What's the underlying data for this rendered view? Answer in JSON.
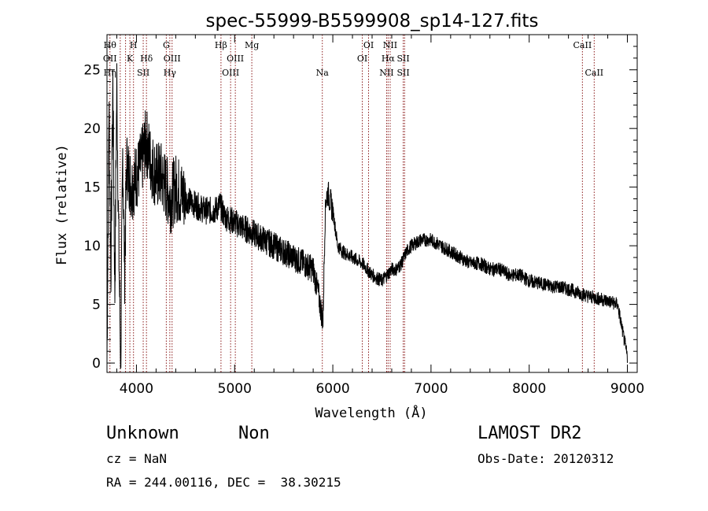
{
  "chart_data": {
    "type": "line",
    "title": "spec-55999-B5599908_sp14-127.fits",
    "xlabel": "Wavelength (Å)",
    "ylabel": "Flux (relative)",
    "xlim": [
      3700,
      9100
    ],
    "ylim": [
      -0.8,
      28.0
    ],
    "xticks": [
      4000,
      5000,
      6000,
      7000,
      8000,
      9000
    ],
    "yticks": [
      0,
      5,
      10,
      15,
      20,
      25
    ],
    "grid": false,
    "line_color": "#000000",
    "marker_color": "#8b1a1a",
    "series": [
      {
        "x": [
          3700,
          3720,
          3740,
          3760,
          3780,
          3800,
          3820,
          3840,
          3860,
          3880,
          3900,
          3950,
          4000,
          4050,
          4100,
          4150,
          4200,
          4250,
          4300,
          4350,
          4400,
          4500,
          4600,
          4700,
          4800,
          4850,
          4900,
          5000,
          5100,
          5200,
          5300,
          5400,
          5500,
          5600,
          5700,
          5800,
          5850,
          5900,
          5920,
          5930,
          5950,
          6000,
          6050,
          6100,
          6200,
          6300,
          6400,
          6500,
          6550,
          6600,
          6650,
          6700,
          6750,
          6800,
          6900,
          7000,
          7100,
          7200,
          7300,
          7400,
          7500,
          7600,
          7700,
          7800,
          7900,
          8000,
          8100,
          8200,
          8300,
          8400,
          8500,
          8600,
          8700,
          8800,
          8900,
          9000
        ],
        "y": [
          0,
          22,
          8,
          24,
          6,
          24,
          10,
          0,
          18,
          8,
          17,
          15,
          16,
          17,
          19,
          17,
          16,
          16,
          15,
          14,
          15,
          14,
          13.5,
          13,
          13,
          13.5,
          12.5,
          12,
          11.5,
          11,
          10.5,
          10,
          9.5,
          9,
          8.5,
          8,
          6,
          3.5,
          12,
          14,
          14.5,
          13,
          10,
          9.5,
          9,
          8.5,
          7.5,
          7,
          7.5,
          8,
          8,
          8.5,
          9.5,
          10,
          10.5,
          10.5,
          10,
          9.5,
          9,
          8.5,
          8.5,
          8,
          8,
          7.5,
          7.5,
          7,
          6.8,
          6.6,
          6.5,
          6.3,
          6,
          5.7,
          5.5,
          5.3,
          5,
          0.5
        ]
      }
    ],
    "lines": [
      {
        "x": 3730,
        "top": "Hθ",
        "mid": "OII",
        "low": "Hη"
      },
      {
        "x": 3835,
        "top": "",
        "mid": "",
        "low": ""
      },
      {
        "x": 3889,
        "top": "",
        "mid": "",
        "low": ""
      },
      {
        "x": 3933,
        "top": "",
        "mid": "K",
        "low": ""
      },
      {
        "x": 3970,
        "top": "H",
        "mid": "",
        "low": ""
      },
      {
        "x": 4069,
        "top": "",
        "mid": "",
        "low": "SII"
      },
      {
        "x": 4102,
        "top": "",
        "mid": "Hδ",
        "low": ""
      },
      {
        "x": 4304,
        "top": "G",
        "mid": "",
        "low": ""
      },
      {
        "x": 4340,
        "top": "",
        "mid": "",
        "low": "Hγ"
      },
      {
        "x": 4363,
        "top": "",
        "mid": "OIII",
        "low": ""
      },
      {
        "x": 4861,
        "top": "Hβ",
        "mid": "",
        "low": ""
      },
      {
        "x": 4959,
        "top": "",
        "mid": "",
        "low": "OIII"
      },
      {
        "x": 5007,
        "top": "",
        "mid": "OIII",
        "low": ""
      },
      {
        "x": 5175,
        "top": "Mg",
        "mid": "",
        "low": ""
      },
      {
        "x": 5893,
        "top": "",
        "mid": "",
        "low": "Na"
      },
      {
        "x": 6300,
        "top": "",
        "mid": "OI",
        "low": ""
      },
      {
        "x": 6364,
        "top": "OI",
        "mid": "",
        "low": ""
      },
      {
        "x": 6548,
        "top": "",
        "mid": "",
        "low": "NII"
      },
      {
        "x": 6563,
        "top": "",
        "mid": "Hα",
        "low": ""
      },
      {
        "x": 6584,
        "top": "NII",
        "mid": "",
        "low": ""
      },
      {
        "x": 6717,
        "top": "",
        "mid": "SII",
        "low": "SII"
      },
      {
        "x": 6731,
        "top": "",
        "mid": "",
        "low": ""
      },
      {
        "x": 8542,
        "top": "CaII",
        "mid": "",
        "low": ""
      },
      {
        "x": 8662,
        "top": "",
        "mid": "",
        "low": "CaII"
      }
    ]
  },
  "info": {
    "classification": "Unknown",
    "subclass": "Non",
    "cz": "cz = NaN",
    "coords": "RA = 244.00116, DEC =  38.30215",
    "survey": "LAMOST DR2",
    "obs_date": "Obs-Date: 20120312"
  }
}
